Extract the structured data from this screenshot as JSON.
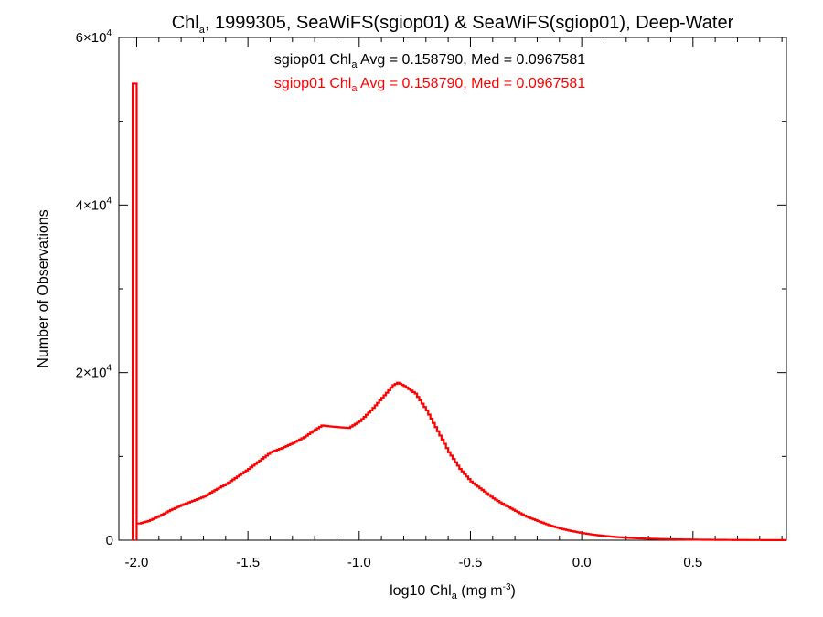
{
  "chart_data": {
    "type": "histogram-step",
    "title": {
      "part1": "Chl",
      "sub": "a",
      "part2": ", 1999305, SeaWiFS(sgiop01) & SeaWiFS(sgiop01), Deep-Water"
    },
    "xlabel": {
      "part1": "log10 Chl",
      "sub": "a",
      "part2": " (mg m",
      "sup": "-3",
      "part3": ")"
    },
    "ylabel": "Number of Observations",
    "xlim": [
      -2.08,
      0.92
    ],
    "ylim": [
      0,
      60000
    ],
    "x_ticks": [
      {
        "value": -2.0,
        "label": "-2.0"
      },
      {
        "value": -1.5,
        "label": "-1.5"
      },
      {
        "value": -1.0,
        "label": "-1.0"
      },
      {
        "value": -0.5,
        "label": "-0.5"
      },
      {
        "value": 0.0,
        "label": "0.0"
      },
      {
        "value": 0.5,
        "label": "0.5"
      }
    ],
    "x_minor_step": 0.1,
    "y_ticks": [
      {
        "value": 0,
        "base": "0",
        "exp": ""
      },
      {
        "value": 20000,
        "base": "2×10",
        "exp": "4"
      },
      {
        "value": 40000,
        "base": "4×10",
        "exp": "4"
      },
      {
        "value": 60000,
        "base": "6×10",
        "exp": "4"
      }
    ],
    "y_minor_step": 10000,
    "legend": [
      {
        "part1": "sgiop01 Chl",
        "sub": "a",
        "part2": " Avg = 0.158790, Med = 0.0967581",
        "color": "#000000"
      },
      {
        "part1": "sgiop01 Chl",
        "sub": "a",
        "part2": " Avg = 0.158790, Med = 0.0967581",
        "color": "#ff0000"
      }
    ],
    "series": [
      {
        "color": "#ff0000",
        "spike": {
          "x": -2.0,
          "y": 54500
        },
        "points": [
          [
            -1.99,
            2000
          ],
          [
            -1.95,
            2300
          ],
          [
            -1.9,
            2900
          ],
          [
            -1.85,
            3600
          ],
          [
            -1.8,
            4200
          ],
          [
            -1.75,
            4700
          ],
          [
            -1.7,
            5200
          ],
          [
            -1.65,
            6000
          ],
          [
            -1.6,
            6700
          ],
          [
            -1.55,
            7600
          ],
          [
            -1.5,
            8500
          ],
          [
            -1.45,
            9500
          ],
          [
            -1.4,
            10500
          ],
          [
            -1.35,
            11000
          ],
          [
            -1.3,
            11600
          ],
          [
            -1.25,
            12300
          ],
          [
            -1.2,
            13200
          ],
          [
            -1.17,
            13700
          ],
          [
            -1.14,
            13600
          ],
          [
            -1.1,
            13500
          ],
          [
            -1.05,
            13400
          ],
          [
            -1.0,
            14200
          ],
          [
            -0.95,
            15500
          ],
          [
            -0.9,
            17000
          ],
          [
            -0.85,
            18500
          ],
          [
            -0.83,
            18800
          ],
          [
            -0.8,
            18400
          ],
          [
            -0.75,
            17500
          ],
          [
            -0.7,
            15500
          ],
          [
            -0.65,
            13000
          ],
          [
            -0.6,
            10500
          ],
          [
            -0.55,
            8500
          ],
          [
            -0.5,
            7000
          ],
          [
            -0.45,
            6000
          ],
          [
            -0.4,
            5000
          ],
          [
            -0.35,
            4200
          ],
          [
            -0.3,
            3500
          ],
          [
            -0.25,
            2800
          ],
          [
            -0.2,
            2300
          ],
          [
            -0.15,
            1800
          ],
          [
            -0.1,
            1400
          ],
          [
            -0.05,
            1100
          ],
          [
            0.0,
            850
          ],
          [
            0.05,
            650
          ],
          [
            0.1,
            500
          ],
          [
            0.15,
            380
          ],
          [
            0.2,
            300
          ],
          [
            0.25,
            230
          ],
          [
            0.3,
            180
          ],
          [
            0.35,
            140
          ],
          [
            0.4,
            110
          ],
          [
            0.45,
            90
          ],
          [
            0.5,
            70
          ],
          [
            0.55,
            55
          ],
          [
            0.6,
            45
          ],
          [
            0.65,
            35
          ],
          [
            0.7,
            28
          ],
          [
            0.75,
            22
          ],
          [
            0.8,
            18
          ],
          [
            0.85,
            14
          ],
          [
            0.9,
            10
          ]
        ]
      }
    ]
  }
}
